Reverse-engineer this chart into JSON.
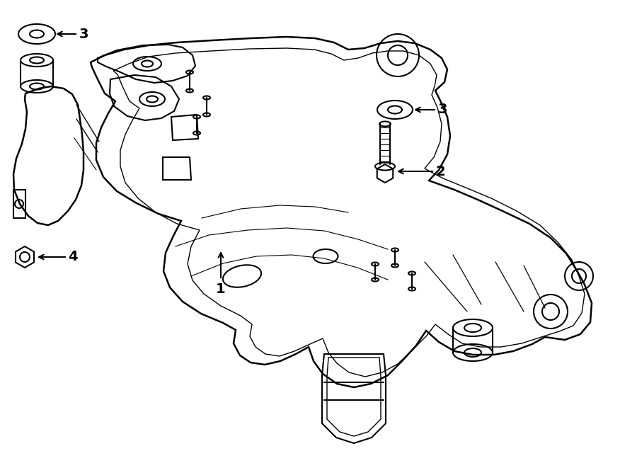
{
  "background_color": "#ffffff",
  "line_color": "#000000",
  "line_width": 1.5,
  "fig_width": 9.0,
  "fig_height": 6.61,
  "dpi": 100
}
